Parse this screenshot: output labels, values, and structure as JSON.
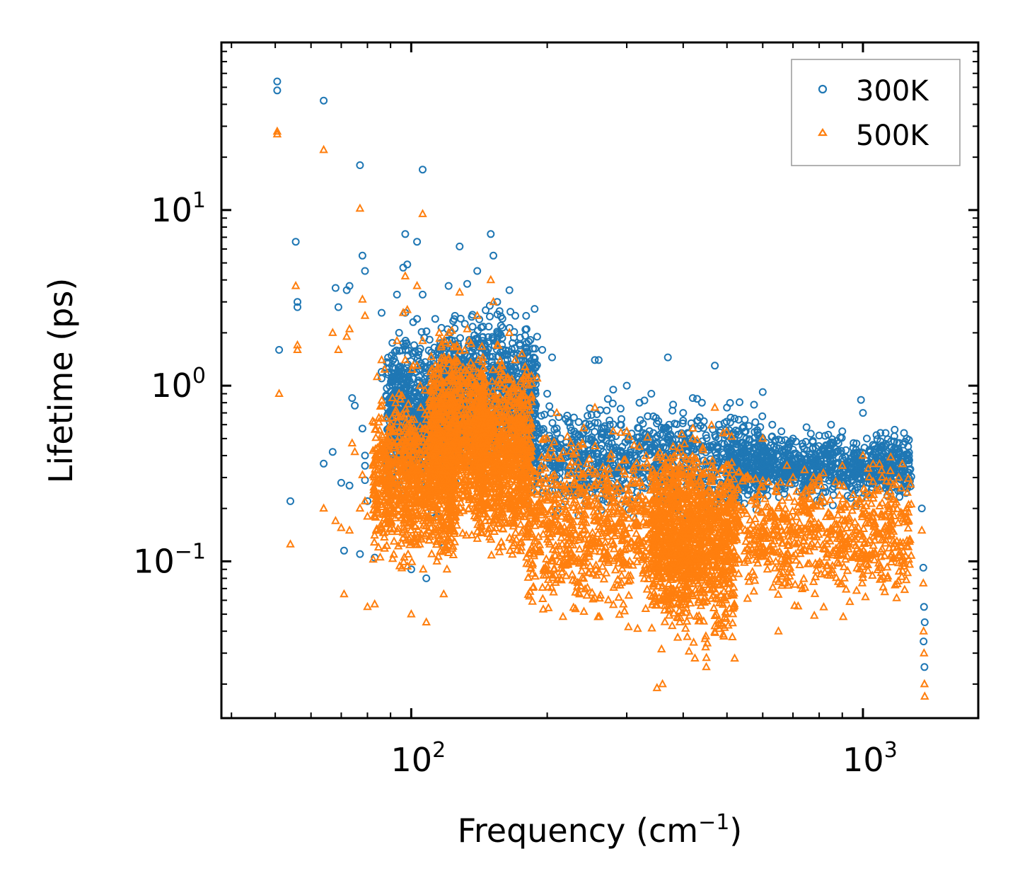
{
  "chart_data": {
    "type": "scatter",
    "xscale": "log",
    "yscale": "log",
    "xlim": [
      38,
      1800
    ],
    "ylim": [
      0.0128,
      90
    ],
    "xlabel": "Frequency (cm",
    "xlabel_sup": "−1",
    "xlabel_suffix": ")",
    "ylabel": "Lifetime (ps)",
    "x_ticks": [
      {
        "value": 100,
        "base": "10",
        "exp": "2"
      },
      {
        "value": 1000,
        "base": "10",
        "exp": "3"
      }
    ],
    "y_ticks": [
      {
        "value": 0.1,
        "base": "10",
        "exp": "−1"
      },
      {
        "value": 1,
        "base": "10",
        "exp": "0"
      },
      {
        "value": 10,
        "base": "10",
        "exp": "1"
      }
    ],
    "legend_position": "top-right",
    "series": [
      {
        "name": "300K",
        "marker": "circle",
        "color": "#1f77b4",
        "points": [
          [
            50.5,
            54
          ],
          [
            50.5,
            48
          ],
          [
            51,
            1.6
          ],
          [
            54,
            0.22
          ],
          [
            55.5,
            6.6
          ],
          [
            56,
            3
          ],
          [
            56,
            2.8
          ],
          [
            64,
            42
          ],
          [
            64,
            0.36
          ],
          [
            67,
            0.42
          ],
          [
            68,
            3.6
          ],
          [
            69,
            2.8
          ],
          [
            70,
            0.28
          ],
          [
            71,
            0.115
          ],
          [
            72,
            3.5
          ],
          [
            73,
            3.7
          ],
          [
            73,
            0.27
          ],
          [
            74,
            0.85
          ],
          [
            75,
            0.77
          ],
          [
            77,
            18
          ],
          [
            77,
            0.11
          ],
          [
            78,
            5.5
          ],
          [
            78,
            0.57
          ],
          [
            79,
            4.5
          ],
          [
            79,
            0.4
          ],
          [
            79,
            0.35
          ],
          [
            79,
            0.29
          ],
          [
            80,
            0.22
          ],
          [
            83,
            0.105
          ],
          [
            86,
            2.6
          ],
          [
            86,
            1.2
          ],
          [
            86,
            1.1
          ],
          [
            88,
            0.88
          ],
          [
            89,
            0.7
          ],
          [
            90,
            0.55
          ],
          [
            93,
            3.3
          ],
          [
            93,
            0.39
          ],
          [
            94,
            2.0
          ],
          [
            94,
            1.15
          ],
          [
            95,
            0.65
          ],
          [
            95,
            0.5
          ],
          [
            96,
            4.7
          ],
          [
            97,
            7.3
          ],
          [
            97,
            2.6
          ],
          [
            97,
            0.6
          ],
          [
            98,
            4.9
          ],
          [
            98,
            0.55
          ],
          [
            99,
            0.45
          ],
          [
            100,
            0.34
          ],
          [
            100,
            0.09
          ],
          [
            101,
            2.3
          ],
          [
            102,
            0.65
          ],
          [
            103,
            6.6
          ],
          [
            103,
            2.4
          ],
          [
            104,
            0.33
          ],
          [
            105,
            1.3
          ],
          [
            106,
            17
          ],
          [
            106,
            3.3
          ],
          [
            107,
            0.26
          ],
          [
            108,
            0.8
          ],
          [
            108,
            0.08
          ],
          [
            110,
            0.6
          ],
          [
            111,
            0.19
          ],
          [
            113,
            2.4
          ],
          [
            114,
            0.18
          ],
          [
            115,
            1.5
          ],
          [
            117,
            1.2
          ],
          [
            118,
            0.12
          ],
          [
            120,
            0.16
          ],
          [
            121,
            3.7
          ],
          [
            122,
            2.0
          ],
          [
            124,
            0.7
          ],
          [
            126,
            1.6
          ],
          [
            128,
            6.2
          ],
          [
            130,
            0.5
          ],
          [
            133,
            3.8
          ],
          [
            135,
            1.2
          ],
          [
            140,
            4.5
          ],
          [
            142,
            0.9
          ],
          [
            144,
            1.8
          ],
          [
            146,
            0.3
          ],
          [
            150,
            7.3
          ],
          [
            152,
            5.5
          ],
          [
            155,
            3.0
          ],
          [
            158,
            2.2
          ],
          [
            160,
            1.0
          ],
          [
            165,
            3.5
          ],
          [
            170,
            2.5
          ],
          [
            175,
            1.4
          ],
          [
            180,
            2.1
          ],
          [
            185,
            1.2
          ],
          [
            190,
            1.9
          ],
          [
            195,
            1.6
          ],
          [
            200,
            0.9
          ],
          [
            205,
            1.45
          ],
          [
            212,
            0.45
          ],
          [
            225,
            0.58
          ],
          [
            240,
            0.5
          ],
          [
            255,
            1.4
          ],
          [
            260,
            1.4
          ],
          [
            280,
            0.95
          ],
          [
            300,
            1.0
          ],
          [
            320,
            0.8
          ],
          [
            340,
            0.9
          ],
          [
            370,
            1.45
          ],
          [
            380,
            0.78
          ],
          [
            400,
            0.7
          ],
          [
            420,
            0.85
          ],
          [
            440,
            0.8
          ],
          [
            470,
            1.3
          ],
          [
            480,
            0.6
          ],
          [
            500,
            0.75
          ],
          [
            520,
            0.65
          ],
          [
            550,
            0.55
          ],
          [
            600,
            0.92
          ],
          [
            630,
            0.6
          ],
          [
            660,
            0.55
          ],
          [
            700,
            0.5
          ],
          [
            750,
            0.58
          ],
          [
            800,
            0.52
          ],
          [
            850,
            0.6
          ],
          [
            900,
            0.55
          ],
          [
            990,
            0.83
          ],
          [
            1000,
            0.7
          ],
          [
            1020,
            0.5
          ],
          [
            1100,
            0.45
          ],
          [
            1150,
            0.4
          ],
          [
            1200,
            0.42
          ],
          [
            1250,
            0.5
          ],
          [
            1350,
            0.2
          ],
          [
            1360,
            0.092
          ],
          [
            1365,
            0.055
          ],
          [
            1370,
            0.045
          ],
          [
            1362,
            0.035
          ],
          [
            1368,
            0.025
          ]
        ],
        "bands": [
          {
            "x": [
              88,
              130
            ],
            "y": [
              0.2,
              2.4
            ]
          },
          {
            "x": [
              115,
              190
            ],
            "y": [
              0.25,
              3.5
            ]
          },
          {
            "x": [
              180,
              600
            ],
            "y": [
              0.15,
              0.95
            ]
          },
          {
            "x": [
              500,
              1280
            ],
            "y": [
              0.2,
              0.6
            ]
          }
        ]
      },
      {
        "name": "500K",
        "marker": "triangle",
        "color": "#ff7f0e",
        "points": [
          [
            50.5,
            28
          ],
          [
            50.5,
            27
          ],
          [
            51,
            0.9
          ],
          [
            54,
            0.125
          ],
          [
            55.5,
            3.7
          ],
          [
            56,
            1.7
          ],
          [
            56,
            1.6
          ],
          [
            64,
            22
          ],
          [
            64,
            0.2
          ],
          [
            67,
            2.0
          ],
          [
            68,
            0.17
          ],
          [
            69,
            1.6
          ],
          [
            70,
            0.155
          ],
          [
            71,
            0.065
          ],
          [
            72,
            1.9
          ],
          [
            73,
            2.1
          ],
          [
            73,
            0.15
          ],
          [
            74,
            0.47
          ],
          [
            75,
            0.42
          ],
          [
            77,
            10.2
          ],
          [
            77,
            0.2
          ],
          [
            78,
            3.1
          ],
          [
            78,
            0.31
          ],
          [
            79,
            2.5
          ],
          [
            79,
            0.22
          ],
          [
            80,
            0.18
          ],
          [
            80,
            0.055
          ],
          [
            83,
            0.057
          ],
          [
            86,
            1.4
          ],
          [
            86,
            0.65
          ],
          [
            88,
            0.65
          ],
          [
            89,
            0.22
          ],
          [
            90,
            0.2
          ],
          [
            93,
            1.8
          ],
          [
            94,
            0.9
          ],
          [
            95,
            0.35
          ],
          [
            96,
            2.6
          ],
          [
            97,
            4.2
          ],
          [
            97,
            1.4
          ],
          [
            98,
            2.7
          ],
          [
            98,
            0.3
          ],
          [
            99,
            0.25
          ],
          [
            100,
            0.19
          ],
          [
            100,
            0.05
          ],
          [
            101,
            1.3
          ],
          [
            102,
            0.38
          ],
          [
            103,
            3.7
          ],
          [
            103,
            1.3
          ],
          [
            104,
            0.18
          ],
          [
            105,
            0.75
          ],
          [
            106,
            9.5
          ],
          [
            106,
            1.8
          ],
          [
            107,
            0.14
          ],
          [
            108,
            0.46
          ],
          [
            108,
            0.045
          ],
          [
            110,
            0.35
          ],
          [
            111,
            0.11
          ],
          [
            113,
            1.3
          ],
          [
            114,
            0.1
          ],
          [
            115,
            0.85
          ],
          [
            118,
            0.065
          ],
          [
            120,
            0.09
          ],
          [
            121,
            2.0
          ],
          [
            122,
            1.1
          ],
          [
            126,
            0.9
          ],
          [
            128,
            3.4
          ],
          [
            130,
            0.28
          ],
          [
            133,
            2.1
          ],
          [
            140,
            2.5
          ],
          [
            142,
            0.5
          ],
          [
            144,
            1.0
          ],
          [
            146,
            0.17
          ],
          [
            150,
            4.0
          ],
          [
            152,
            3.0
          ],
          [
            155,
            1.7
          ],
          [
            158,
            1.2
          ],
          [
            160,
            0.55
          ],
          [
            165,
            2.0
          ],
          [
            170,
            1.4
          ],
          [
            175,
            0.8
          ],
          [
            180,
            1.2
          ],
          [
            190,
            1.1
          ],
          [
            200,
            0.5
          ],
          [
            210,
            0.7
          ],
          [
            225,
            0.35
          ],
          [
            240,
            0.3
          ],
          [
            255,
            0.75
          ],
          [
            280,
            0.55
          ],
          [
            300,
            0.55
          ],
          [
            320,
            0.45
          ],
          [
            350,
            0.019
          ],
          [
            360,
            0.02
          ],
          [
            380,
            0.45
          ],
          [
            400,
            0.4
          ],
          [
            420,
            0.5
          ],
          [
            450,
            0.025
          ],
          [
            470,
            0.75
          ],
          [
            500,
            0.35
          ],
          [
            520,
            0.028
          ],
          [
            550,
            0.3
          ],
          [
            600,
            0.5
          ],
          [
            650,
            0.04
          ],
          [
            700,
            0.3
          ],
          [
            800,
            0.3
          ],
          [
            900,
            0.35
          ],
          [
            1000,
            0.4
          ],
          [
            1100,
            0.33
          ],
          [
            1150,
            0.25
          ],
          [
            1200,
            0.3
          ],
          [
            1350,
            0.15
          ],
          [
            1360,
            0.075
          ],
          [
            1362,
            0.04
          ],
          [
            1365,
            0.03
          ],
          [
            1368,
            0.02
          ],
          [
            1370,
            0.017
          ]
        ],
        "bands": [
          {
            "x": [
              82,
              125
            ],
            "y": [
              0.07,
              1.3
            ]
          },
          {
            "x": [
              110,
              145
            ],
            "y": [
              0.1,
              2.5
            ]
          },
          {
            "x": [
              140,
              185
            ],
            "y": [
              0.08,
              2.0
            ]
          },
          {
            "x": [
              180,
              420
            ],
            "y": [
              0.035,
              0.7
            ]
          },
          {
            "x": [
              340,
              520
            ],
            "y": [
              0.022,
              0.75
            ]
          },
          {
            "x": [
              400,
              1280
            ],
            "y": [
              0.045,
              0.45
            ]
          }
        ]
      }
    ]
  }
}
